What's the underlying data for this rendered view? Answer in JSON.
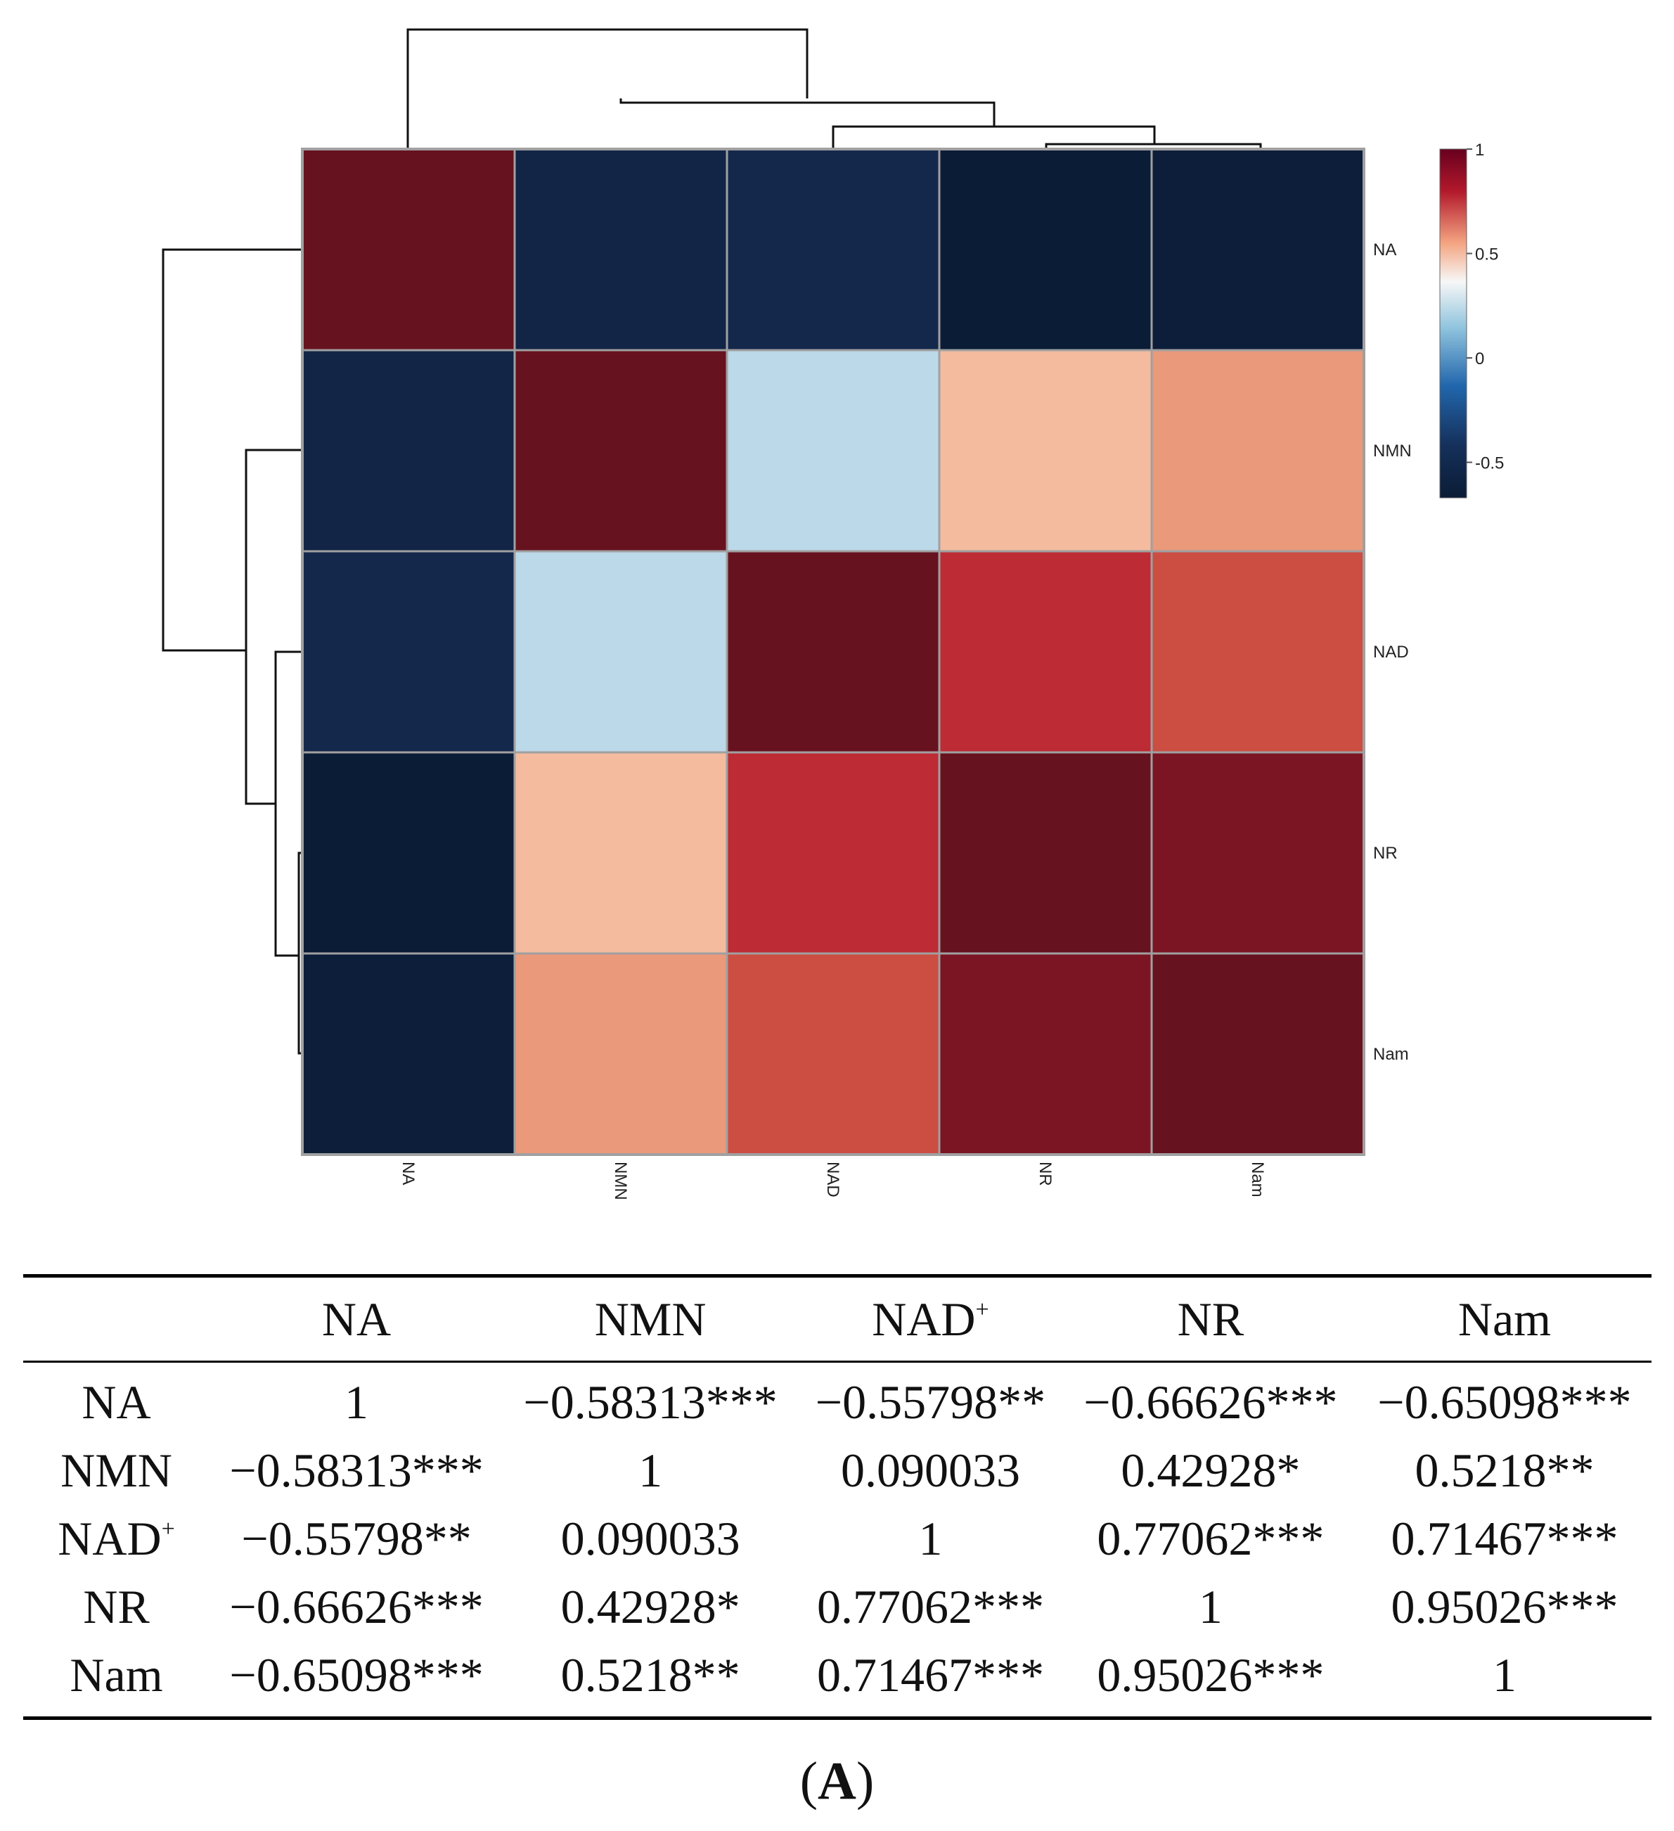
{
  "chart_data": {
    "type": "heatmap",
    "title": "",
    "rows": [
      "NA",
      "NMN",
      "NAD",
      "NR",
      "Nam"
    ],
    "columns": [
      "NA",
      "NMN",
      "NAD",
      "NR",
      "Nam"
    ],
    "values": [
      [
        1,
        -0.58313,
        -0.55798,
        -0.66626,
        -0.65098
      ],
      [
        -0.58313,
        1,
        0.090033,
        0.42928,
        0.5218
      ],
      [
        -0.55798,
        0.090033,
        1,
        0.77062,
        0.71467
      ],
      [
        -0.66626,
        0.42928,
        0.77062,
        1,
        0.95026
      ],
      [
        -0.65098,
        0.5218,
        0.71467,
        0.95026,
        1
      ]
    ],
    "colorbar": {
      "range": [
        -0.67,
        1
      ],
      "ticks": [
        "1",
        "0.5",
        "0",
        "-0.5"
      ],
      "tick_values": [
        1,
        0.5,
        0,
        -0.5
      ]
    },
    "colors": {
      "low": "#0b1c36",
      "mid_low": "#2166ac",
      "mid": "#f7f7f7",
      "mid_high": "#d6604d",
      "high": "#67001f"
    }
  },
  "table": {
    "columns": [
      "NA",
      "NMN",
      "NAD",
      "NR",
      "Nam"
    ],
    "plus_sign": "+",
    "rows": [
      {
        "label": "NA",
        "label_plus": false,
        "cells": [
          "1",
          "−0.58313***",
          "−0.55798**",
          "−0.66626***",
          "−0.65098***"
        ]
      },
      {
        "label": "NMN",
        "label_plus": false,
        "cells": [
          "−0.58313***",
          "1",
          "0.090033",
          "0.42928*",
          "0.5218**"
        ]
      },
      {
        "label": "NAD",
        "label_plus": true,
        "cells": [
          "−0.55798**",
          "0.090033",
          "1",
          "0.77062***",
          "0.71467***"
        ]
      },
      {
        "label": "NR",
        "label_plus": false,
        "cells": [
          "−0.66626***",
          "0.42928*",
          "0.77062***",
          "1",
          "0.95026***"
        ]
      },
      {
        "label": "Nam",
        "label_plus": false,
        "cells": [
          "−0.65098***",
          "0.5218**",
          "0.71467***",
          "0.95026***",
          "1"
        ]
      }
    ]
  },
  "panel_label": {
    "open": "(",
    "letter": "A",
    "close": ")"
  }
}
